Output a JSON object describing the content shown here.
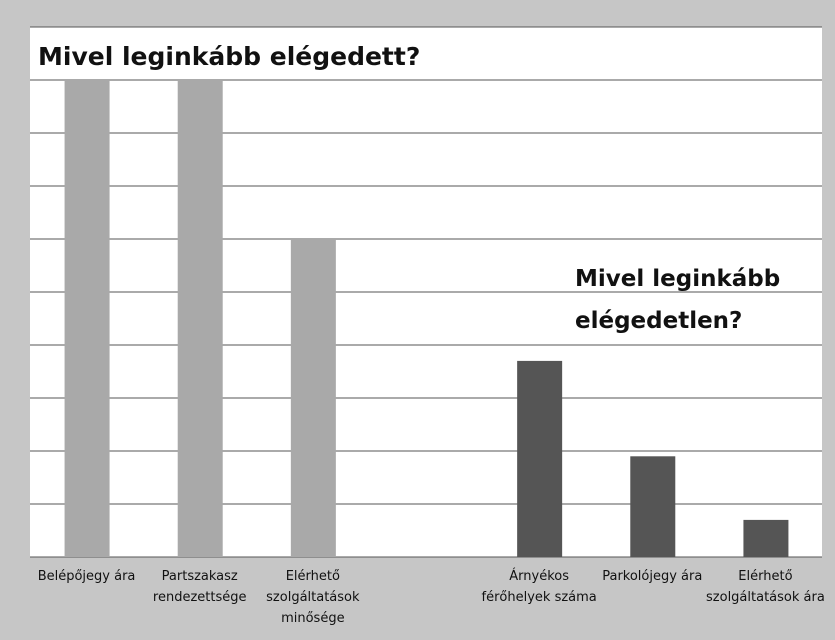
{
  "chart_data": {
    "type": "bar",
    "title": "Mivel leginkább elégedett?",
    "annotations": [
      "Mivel leginkább elégedetlen?"
    ],
    "categories": [
      "Belépőjegy ára",
      "Partszakasz rendezettsége",
      "Elérhető szolgáltatások minősége",
      null,
      "Árnyékos férőhelyek száma",
      "Parkolójegy ára",
      "Elérhető szolgáltatások ára"
    ],
    "values": [
      9,
      9,
      6,
      null,
      3.7,
      1.9,
      0.7
    ],
    "colors": [
      "#a9a9a9",
      "#a9a9a9",
      "#a9a9a9",
      null,
      "#555555",
      "#555555",
      "#555555"
    ],
    "ylim": [
      0,
      10
    ],
    "yticks": [
      0,
      1,
      2,
      3,
      4,
      5,
      6,
      7,
      8,
      9,
      10
    ],
    "grid": true
  }
}
